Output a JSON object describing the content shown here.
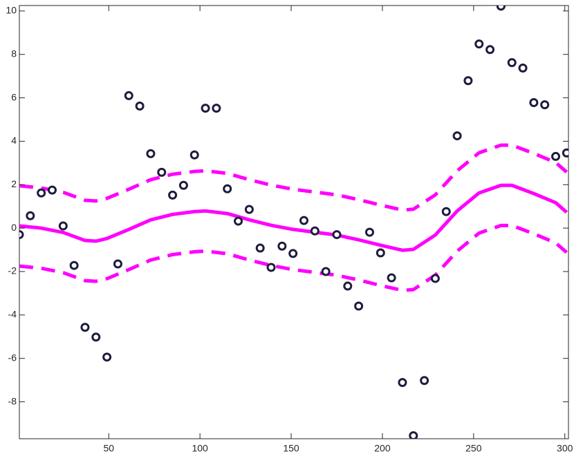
{
  "chart_data": {
    "type": "combo",
    "xlim": [
      1,
      302
    ],
    "ylim": [
      -9.7,
      10.25
    ],
    "xticks": [
      50,
      100,
      150,
      200,
      250,
      300
    ],
    "yticks": [
      -8,
      -6,
      -4,
      -2,
      0,
      2,
      4,
      6,
      8,
      10
    ],
    "series": [
      {
        "type": "scatter",
        "color": "#1c1c3c",
        "x": [
          1,
          7,
          13,
          19,
          25,
          31,
          37,
          43,
          49,
          55,
          61,
          67,
          73,
          79,
          85,
          91,
          97,
          103,
          109,
          115,
          121,
          127,
          133,
          139,
          145,
          151,
          157,
          163,
          169,
          175,
          181,
          187,
          193,
          199,
          205,
          211,
          217,
          223,
          229,
          235,
          241,
          247,
          253,
          259,
          265,
          271,
          277,
          283,
          289,
          295,
          301
        ],
        "values": [
          -0.3,
          0.57,
          1.62,
          1.75,
          0.1,
          -1.72,
          -4.57,
          -5.02,
          -5.94,
          -1.65,
          6.1,
          5.62,
          3.43,
          2.57,
          1.52,
          1.97,
          3.37,
          5.52,
          5.52,
          1.81,
          0.32,
          0.86,
          -0.92,
          -1.81,
          -0.83,
          -1.17,
          0.35,
          -0.13,
          -2.0,
          -0.3,
          -2.67,
          -3.59,
          -0.19,
          -1.14,
          -2.29,
          -7.11,
          -9.56,
          -7.02,
          -2.32,
          0.76,
          4.25,
          6.79,
          8.48,
          8.22,
          10.22,
          7.62,
          7.37,
          5.78,
          5.68,
          3.3,
          3.46
        ]
      },
      {
        "type": "line",
        "color": "#ff00ff",
        "dashed": false,
        "x": [
          1,
          13,
          25,
          37,
          43,
          49,
          61,
          73,
          85,
          97,
          103,
          115,
          127,
          139,
          151,
          163,
          175,
          187,
          199,
          211,
          217,
          229,
          241,
          253,
          265,
          271,
          283,
          295,
          301
        ],
        "values": [
          0.1,
          0,
          -0.2,
          -0.57,
          -0.6,
          -0.48,
          -0.06,
          0.38,
          0.63,
          0.76,
          0.79,
          0.67,
          0.38,
          0.13,
          -0.06,
          -0.19,
          -0.32,
          -0.54,
          -0.79,
          -1.02,
          -0.98,
          -0.32,
          0.79,
          1.62,
          1.97,
          1.97,
          1.59,
          1.17,
          0.73
        ]
      },
      {
        "type": "line",
        "color": "#ff00ff",
        "dashed": true,
        "x": [
          1,
          13,
          25,
          37,
          43,
          49,
          61,
          73,
          85,
          97,
          103,
          115,
          127,
          139,
          151,
          163,
          175,
          187,
          199,
          211,
          217,
          229,
          241,
          253,
          265,
          271,
          283,
          295,
          301
        ],
        "values": [
          1.95,
          1.85,
          1.65,
          1.28,
          1.25,
          1.37,
          1.79,
          2.23,
          2.48,
          2.61,
          2.64,
          2.52,
          2.23,
          1.98,
          1.79,
          1.66,
          1.53,
          1.31,
          1.06,
          0.83,
          0.87,
          1.53,
          2.64,
          3.47,
          3.82,
          3.82,
          3.44,
          3.02,
          2.58
        ]
      },
      {
        "type": "line",
        "color": "#ff00ff",
        "dashed": true,
        "x": [
          1,
          13,
          25,
          37,
          43,
          49,
          61,
          73,
          85,
          97,
          103,
          115,
          127,
          139,
          151,
          163,
          175,
          187,
          199,
          211,
          217,
          229,
          241,
          253,
          265,
          271,
          283,
          295,
          301
        ],
        "values": [
          -1.75,
          -1.85,
          -2.05,
          -2.42,
          -2.45,
          -2.33,
          -1.91,
          -1.47,
          -1.22,
          -1.09,
          -1.06,
          -1.18,
          -1.47,
          -1.72,
          -1.91,
          -2.04,
          -2.17,
          -2.39,
          -2.64,
          -2.87,
          -2.83,
          -2.17,
          -1.06,
          -0.23,
          0.12,
          0.12,
          -0.26,
          -0.68,
          -1.12
        ]
      }
    ]
  }
}
